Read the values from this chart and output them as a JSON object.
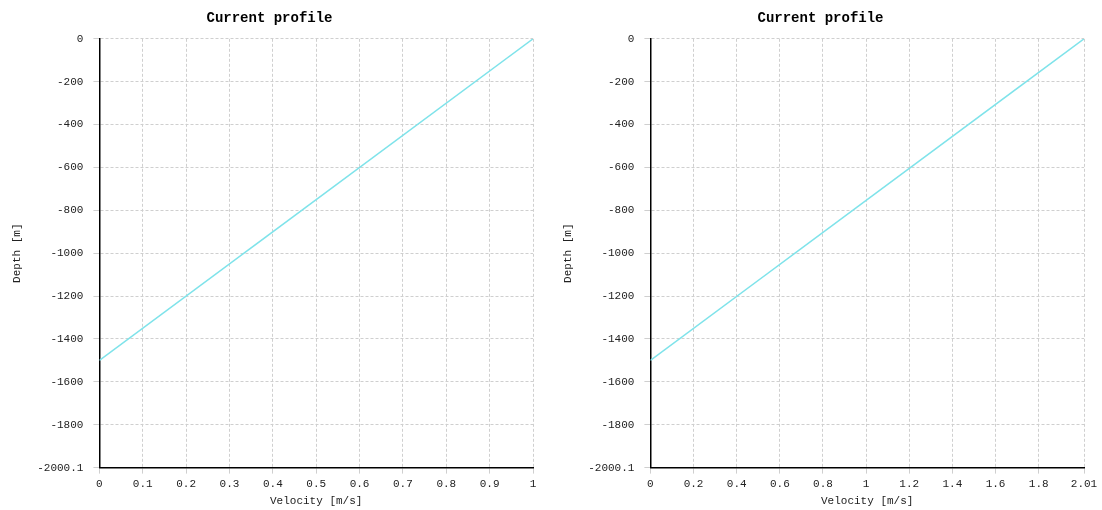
{
  "chart_data": [
    {
      "type": "line",
      "title": "Current profile",
      "xlabel": "Velocity [m/s]",
      "ylabel": "Depth [m]",
      "x": [
        0,
        1
      ],
      "values": [
        -1500,
        0
      ],
      "color": "#7fe3ea",
      "xlim": [
        0,
        1
      ],
      "xticks": [
        0,
        0.1,
        0.2,
        0.3,
        0.4,
        0.5,
        0.6,
        0.7,
        0.8,
        0.9,
        1
      ],
      "ylim": [
        -2000.1,
        0
      ],
      "yticks": [
        -2000.1,
        -1800,
        -1600,
        -1400,
        -1200,
        -1000,
        -800,
        -600,
        -400,
        -200,
        0
      ],
      "grid": true
    },
    {
      "type": "line",
      "title": "Current profile",
      "xlabel": "Velocity [m/s]",
      "ylabel": "Depth [m]",
      "x": [
        0,
        2.01
      ],
      "values": [
        -1500,
        0
      ],
      "color": "#7fe3ea",
      "xlim": [
        0,
        2.01
      ],
      "xticks": [
        0,
        0.2,
        0.4,
        0.6,
        0.8,
        1,
        1.2,
        1.4,
        1.6,
        1.8,
        2.01
      ],
      "ylim": [
        -2000.1,
        0
      ],
      "yticks": [
        -2000.1,
        -1800,
        -1600,
        -1400,
        -1200,
        -1000,
        -800,
        -600,
        -400,
        -200,
        0
      ],
      "grid": true
    }
  ]
}
